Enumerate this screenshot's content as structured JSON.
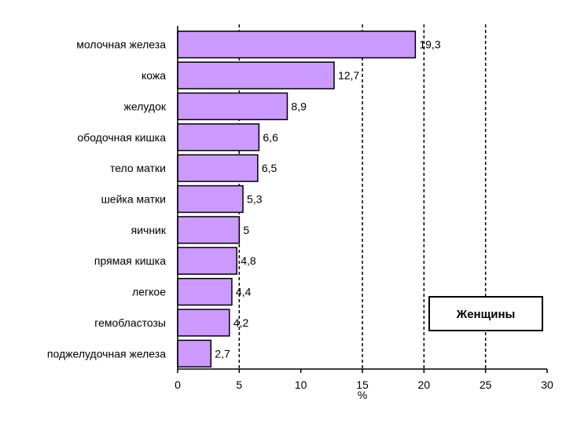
{
  "chart_data": {
    "type": "bar",
    "orientation": "horizontal",
    "categories": [
      "молочная железа",
      "кожа",
      "желудок",
      "ободочная кишка",
      "тело матки",
      "шейка матки",
      "яичник",
      "прямая кишка",
      "легкое",
      "гемобластозы",
      "поджелудочная железа"
    ],
    "values": [
      19.3,
      12.7,
      8.9,
      6.6,
      6.5,
      5.3,
      5,
      4.8,
      4.4,
      4.2,
      2.7
    ],
    "value_labels": [
      "19,3",
      "12,7",
      "8,9",
      "6,6",
      "6,5",
      "5,3",
      "5",
      "4,8",
      "4,4",
      "4,2",
      "2,7"
    ],
    "xlabel": "%",
    "xlim": [
      0,
      30
    ],
    "xticks": [
      "0",
      "5",
      "10",
      "15",
      "20",
      "25",
      "30"
    ],
    "gridlines_at": [
      5,
      15,
      20,
      25
    ],
    "bar_color": "#cc99ff",
    "legend_text": "Женщины",
    "legend_placement": "right"
  }
}
